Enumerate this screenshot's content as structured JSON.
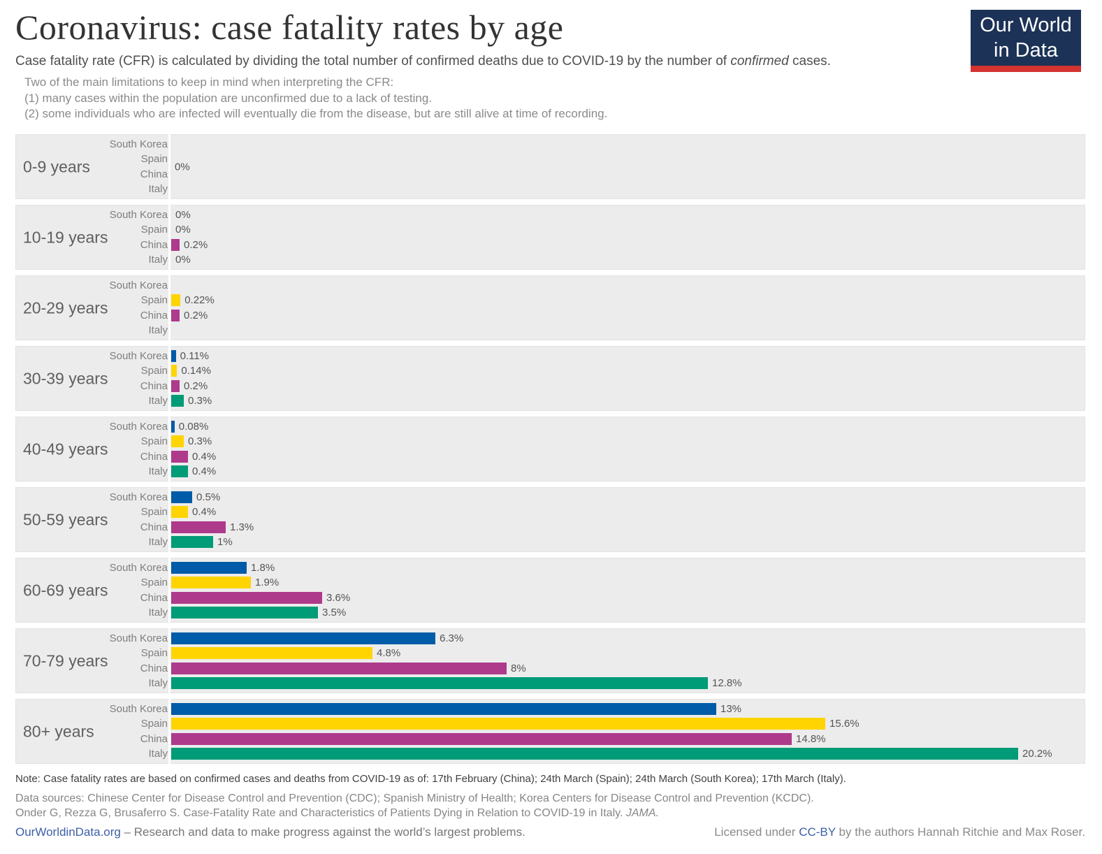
{
  "header": {
    "title": "Coronavirus: case fatality rates by age",
    "subtitle_prefix": "Case fatality rate (CFR) is calculated by dividing the total number of confirmed deaths due to COVID-19 by the number of ",
    "subtitle_italic": "confirmed",
    "subtitle_suffix": " cases.",
    "limitations": [
      "Two of the main limitations to keep in mind when interpreting the CFR:",
      "(1) many cases within the population are unconfirmed due to a lack of testing.",
      "(2) some individuals who are infected will eventually die from the disease, but are still alive at time of recording."
    ],
    "logo": {
      "line1": "Our World",
      "line2": "in Data",
      "bg_color": "#1c3256",
      "stripe_color": "#d4332f"
    }
  },
  "chart_data": {
    "type": "bar",
    "orientation": "horizontal",
    "unit": "%",
    "xlim": [
      0,
      20.2
    ],
    "grid": false,
    "legend": "inline-row-labels",
    "countries": [
      "South Korea",
      "Spain",
      "China",
      "Italy"
    ],
    "colors": {
      "South Korea": "#005BA8",
      "Spain": "#FFD400",
      "China": "#AE3A8C",
      "Italy": "#009B77"
    },
    "groups": [
      {
        "age": "0-9 years",
        "group_label": "0%",
        "bars": [
          {
            "country": "South Korea",
            "value": 0,
            "label": null
          },
          {
            "country": "Spain",
            "value": 0,
            "label": null
          },
          {
            "country": "China",
            "value": 0,
            "label": null
          },
          {
            "country": "Italy",
            "value": 0,
            "label": null
          }
        ]
      },
      {
        "age": "10-19 years",
        "group_label": null,
        "bars": [
          {
            "country": "South Korea",
            "value": 0,
            "label": "0%"
          },
          {
            "country": "Spain",
            "value": 0,
            "label": "0%"
          },
          {
            "country": "China",
            "value": 0.2,
            "label": "0.2%"
          },
          {
            "country": "Italy",
            "value": 0,
            "label": "0%"
          }
        ]
      },
      {
        "age": "20-29 years",
        "group_label": null,
        "bars": [
          {
            "country": "South Korea",
            "value": 0,
            "label": null
          },
          {
            "country": "Spain",
            "value": 0.22,
            "label": "0.22%"
          },
          {
            "country": "China",
            "value": 0.2,
            "label": "0.2%"
          },
          {
            "country": "Italy",
            "value": 0,
            "label": null
          }
        ]
      },
      {
        "age": "30-39 years",
        "group_label": null,
        "bars": [
          {
            "country": "South Korea",
            "value": 0.11,
            "label": "0.11%"
          },
          {
            "country": "Spain",
            "value": 0.14,
            "label": "0.14%"
          },
          {
            "country": "China",
            "value": 0.2,
            "label": "0.2%"
          },
          {
            "country": "Italy",
            "value": 0.3,
            "label": "0.3%"
          }
        ]
      },
      {
        "age": "40-49 years",
        "group_label": null,
        "bars": [
          {
            "country": "South Korea",
            "value": 0.08,
            "label": "0.08%"
          },
          {
            "country": "Spain",
            "value": 0.3,
            "label": "0.3%"
          },
          {
            "country": "China",
            "value": 0.4,
            "label": "0.4%"
          },
          {
            "country": "Italy",
            "value": 0.4,
            "label": "0.4%"
          }
        ]
      },
      {
        "age": "50-59 years",
        "group_label": null,
        "bars": [
          {
            "country": "South Korea",
            "value": 0.5,
            "label": "0.5%"
          },
          {
            "country": "Spain",
            "value": 0.4,
            "label": "0.4%"
          },
          {
            "country": "China",
            "value": 1.3,
            "label": "1.3%"
          },
          {
            "country": "Italy",
            "value": 1,
            "label": "1%"
          }
        ]
      },
      {
        "age": "60-69 years",
        "group_label": null,
        "bars": [
          {
            "country": "South Korea",
            "value": 1.8,
            "label": "1.8%"
          },
          {
            "country": "Spain",
            "value": 1.9,
            "label": "1.9%"
          },
          {
            "country": "China",
            "value": 3.6,
            "label": "3.6%"
          },
          {
            "country": "Italy",
            "value": 3.5,
            "label": "3.5%"
          }
        ]
      },
      {
        "age": "70-79 years",
        "group_label": null,
        "bars": [
          {
            "country": "South Korea",
            "value": 6.3,
            "label": "6.3%"
          },
          {
            "country": "Spain",
            "value": 4.8,
            "label": "4.8%"
          },
          {
            "country": "China",
            "value": 8,
            "label": "8%"
          },
          {
            "country": "Italy",
            "value": 12.8,
            "label": "12.8%"
          }
        ]
      },
      {
        "age": "80+ years",
        "group_label": null,
        "bars": [
          {
            "country": "South Korea",
            "value": 13,
            "label": "13%"
          },
          {
            "country": "Spain",
            "value": 15.6,
            "label": "15.6%"
          },
          {
            "country": "China",
            "value": 14.8,
            "label": "14.8%"
          },
          {
            "country": "Italy",
            "value": 20.2,
            "label": "20.2%"
          }
        ]
      }
    ]
  },
  "footer": {
    "note": "Note: Case fatality rates are based on confirmed cases and deaths from COVID-19 as of: 17th February (China); 24th March (Spain); 24th March (South Korea); 17th March (Italy).",
    "sources_line1": "Data sources: Chinese Center for Disease Control and Prevention (CDC); Spanish Ministry of Health; Korea Centers for Disease Control and Prevention (KCDC).",
    "sources_line2": "Onder G, Rezza G, Brusaferro S. Case-Fatality Rate and Characteristics of Patients Dying in Relation to COVID-19 in Italy. ",
    "sources_line2_italic": "JAMA.",
    "site_link": "OurWorldinData.org",
    "tagline": " – Research and data to make progress against the world’s largest problems.",
    "license_prefix": "Licensed under ",
    "license_link": "CC-BY",
    "license_suffix": " by the authors Hannah Ritchie and Max Roser.",
    "link_color": "#3d5fa8"
  }
}
